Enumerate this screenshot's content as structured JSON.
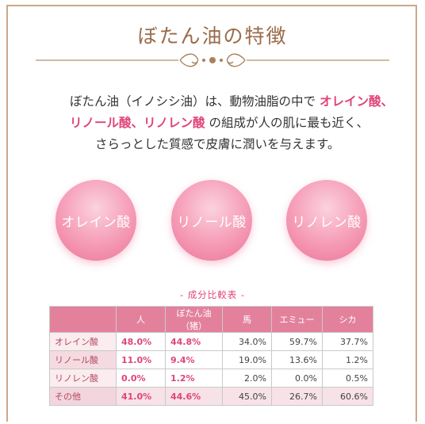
{
  "title": "ぼたん油の特徴",
  "intro": {
    "line1_prefix": "ぼたん油（イノシシ油）は、動物油脂の中で ",
    "line1_hl": "オレイン酸、",
    "line2_hl": "リノール酸、リノレン酸",
    "line2_rest": " の組成が人の肌に最も近く、",
    "line3": "さらっとした質感で皮膚に潤いを与えます。"
  },
  "circles": [
    "オレイン酸",
    "リノール酸",
    "リノレン酸"
  ],
  "table": {
    "caption": "- 成分比較表 -",
    "headers": [
      "",
      "人",
      "ぼたん油（猪）",
      "馬",
      "エミュー",
      "シカ"
    ],
    "rows": [
      {
        "label": "オレイン酸",
        "values": [
          "48.0%",
          "44.8%",
          "34.0%",
          "59.7%",
          "37.7%"
        ]
      },
      {
        "label": "リノール酸",
        "values": [
          "11.0%",
          "9.4%",
          "19.0%",
          "13.6%",
          "1.2%"
        ]
      },
      {
        "label": "リノレン酸",
        "values": [
          "0.0%",
          "1.2%",
          "2.0%",
          "0.0%",
          "0.5%"
        ]
      },
      {
        "label": "その他",
        "values": [
          "41.0%",
          "44.6%",
          "45.0%",
          "26.7%",
          "60.6%"
        ]
      }
    ]
  },
  "colors": {
    "accent": "#e0447a",
    "gold": "#b5916a",
    "header_pink": "#e3819d"
  }
}
